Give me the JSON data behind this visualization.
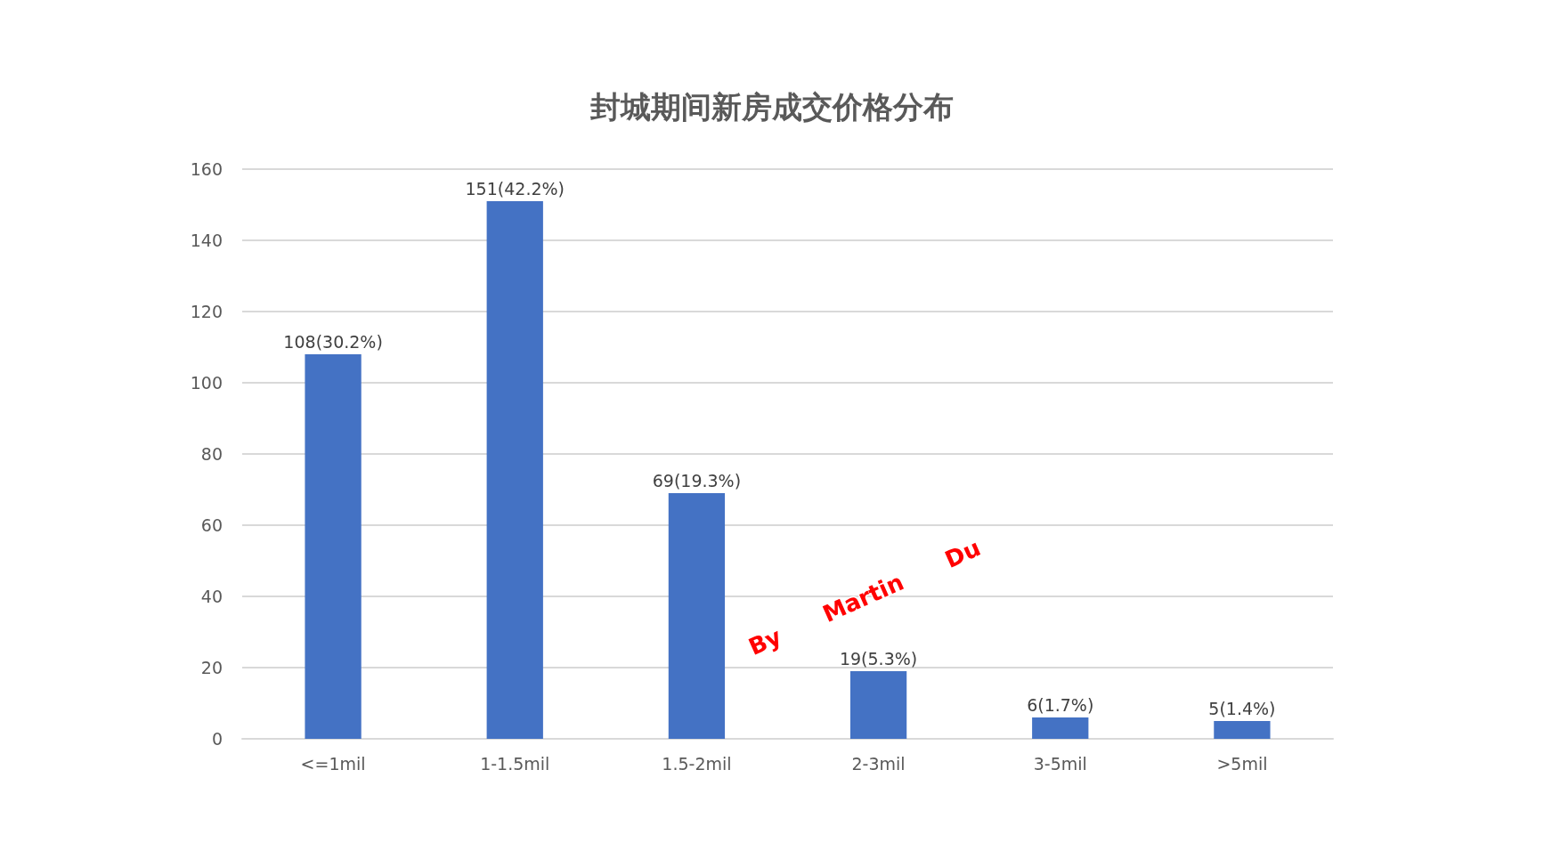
{
  "chart_data": {
    "type": "bar",
    "title": "封城期间新房成交价格分布",
    "categories": [
      "<=1mil",
      "1-1.5mil",
      "1.5-2mil",
      "2-3mil",
      "3-5mil",
      ">5mil"
    ],
    "values": [
      108,
      151,
      69,
      19,
      6,
      5
    ],
    "value_labels": [
      "108(30.2%)",
      "151(42.2%)",
      "69(19.3%)",
      "19(5.3%)",
      "6(1.7%)",
      "5(1.4%)"
    ],
    "color": "#4472c4",
    "ylim": [
      0,
      160
    ],
    "yticks": [
      0,
      20,
      40,
      60,
      80,
      100,
      120,
      140,
      160
    ],
    "grid": "y",
    "annotations": [
      "By      Martin      Du"
    ]
  }
}
